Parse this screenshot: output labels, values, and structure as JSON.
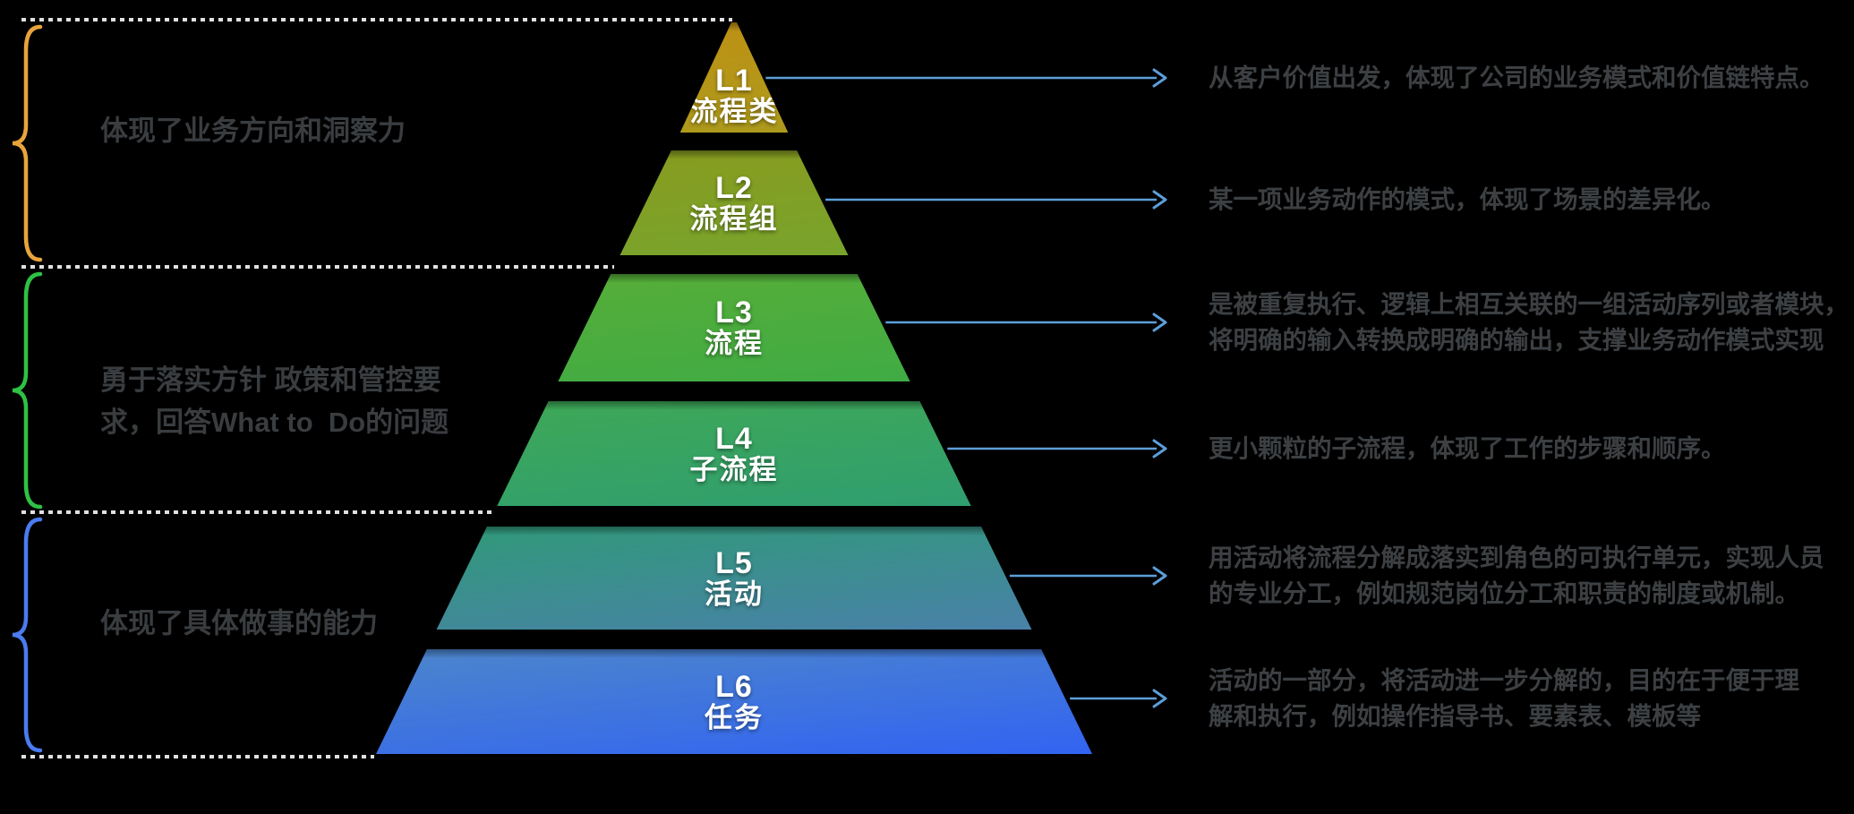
{
  "background_color": "#000000",
  "pyramid": {
    "levels": [
      {
        "code": "L1",
        "name": "流程类",
        "color_top": "#c28e12",
        "color_bottom": "#a89d1e",
        "description": "从客户价值出发，体现了公司的业务模式和价值链特点。"
      },
      {
        "code": "L2",
        "name": "流程组",
        "color_top": "#8a9a1d",
        "color_bottom": "#76a52e",
        "description": "某一项业务动作的模式，体现了场景的差异化。"
      },
      {
        "code": "L3",
        "name": "流程",
        "color_top": "#59ae36",
        "color_bottom": "#3dab46",
        "description": "是被重复执行、逻辑上相互关联的一组活动序列或者模块，\n将明确的输入转换成明确的输出，支撑业务动作模式实现"
      },
      {
        "code": "L4",
        "name": "子流程",
        "color_top": "#3fa954",
        "color_bottom": "#2f9d72",
        "description": "更小颗粒的子流程，体现了工作的步骤和顺序。"
      },
      {
        "code": "L5",
        "name": "活动",
        "color_top": "#2f9a77",
        "color_bottom": "#4a80aa",
        "description": "用活动将流程分解成落实到角色的可执行单元，实现人员\n的专业分工，例如规范岗位分工和职责的制度或机制。"
      },
      {
        "code": "L6",
        "name": "任务",
        "color_top": "#4c86cb",
        "color_bottom": "#3263f2",
        "description": "活动的一部分，将活动进一步分解的，目的在于便于理\n解和执行，例如操作指导书、要素表、模板等"
      }
    ]
  },
  "groups": [
    {
      "label": "体现了业务方向和洞察力",
      "brace_color": "#e8a43c"
    },
    {
      "label": "勇于落实方针 政策和管控要\n求，回答What to  Do的问题",
      "brace_color": "#2ec244"
    },
    {
      "label": "体现了具体做事的能力",
      "brace_color": "#4a7cf0"
    }
  ],
  "arrow_color": "#5c9ed9",
  "dotted_line_color": "#e0e0e0",
  "text_colors": {
    "left_label": "#3a3d40",
    "right_description": "#3d4043",
    "level_label": "#ffffff"
  }
}
